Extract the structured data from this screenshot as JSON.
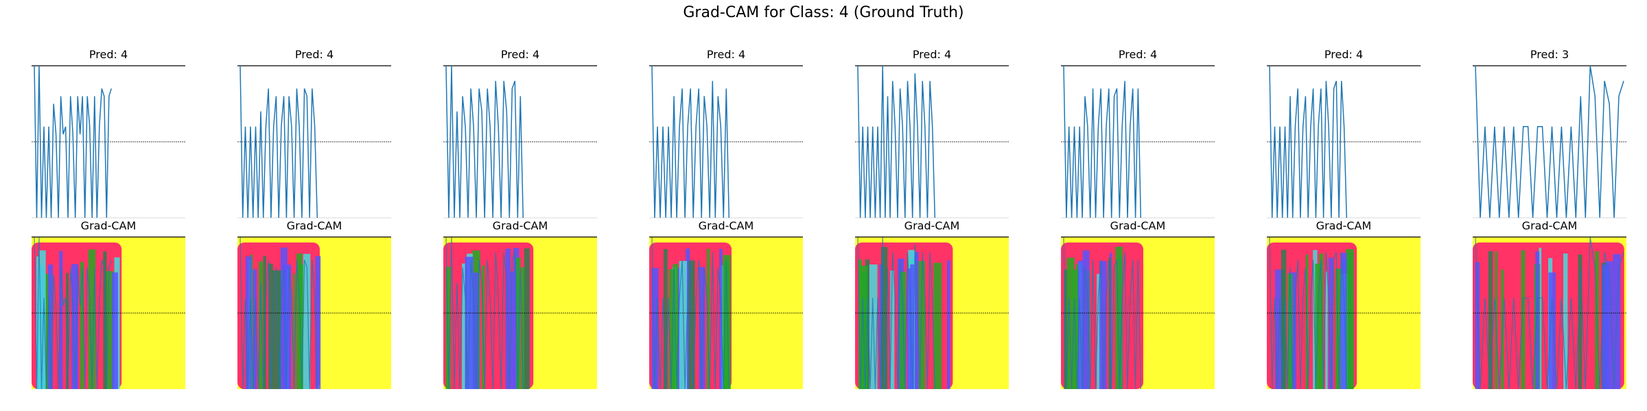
{
  "suptitle": "Grad-CAM for Class: 4 (Ground Truth)",
  "colors": {
    "line": "#1f77b4",
    "cam_yellow": "#ffff33",
    "cam_red": "#ff3366",
    "cam_green": "#22aa22",
    "cam_blue": "#5555ff",
    "cam_cyan": "#44dddd",
    "midline": "#000000"
  },
  "chart_data": [
    {
      "type": "line",
      "panel": "signal",
      "title": "Pred: 4",
      "y": [
        1,
        0,
        1,
        0,
        0.6,
        0,
        0.6,
        0,
        0.75,
        0.55,
        0,
        0.8,
        0.55,
        0.6,
        0,
        0.8,
        0.55,
        0,
        0.8,
        0.55,
        0.8,
        0,
        0.8,
        0.6,
        0,
        0.8,
        0,
        0.6,
        0.85,
        0.8,
        0,
        0.8,
        0.85
      ]
    },
    {
      "type": "heatmap",
      "panel": "cam",
      "title": "Grad-CAM",
      "activation_extent": 0.55
    },
    {
      "type": "line",
      "panel": "signal",
      "title": "Pred: 4",
      "y": [
        1,
        0,
        0.6,
        0,
        0.6,
        0,
        0.6,
        0,
        0.7,
        0,
        0.6,
        0.85,
        0,
        0.6,
        0.8,
        0,
        0.6,
        0.8,
        0,
        0.8,
        0.6,
        0,
        0.85,
        0.6,
        0,
        0.85,
        0.8,
        0,
        0.85,
        0.6,
        0
      ]
    },
    {
      "type": "heatmap",
      "panel": "cam",
      "title": "Grad-CAM",
      "activation_extent": 0.5
    },
    {
      "type": "line",
      "panel": "signal",
      "title": "Pred: 4",
      "y": [
        1,
        0,
        1,
        0,
        0.7,
        0,
        0.8,
        0.6,
        0,
        0.85,
        0.6,
        0,
        0.85,
        0.7,
        0,
        0.85,
        0.6,
        0,
        0.9,
        0.6,
        0,
        0.9,
        0.7,
        0,
        0.85,
        0.9,
        0,
        0.8,
        0
      ]
    },
    {
      "type": "heatmap",
      "panel": "cam",
      "title": "Grad-CAM",
      "activation_extent": 0.55
    },
    {
      "type": "line",
      "panel": "signal",
      "title": "Pred: 4",
      "y": [
        1,
        0,
        0.6,
        0,
        0.6,
        0,
        0.6,
        0,
        0.8,
        0,
        0.6,
        0.85,
        0,
        0.6,
        0.85,
        0,
        0.6,
        0.85,
        0,
        0.8,
        0.6,
        0,
        0.9,
        0,
        0.8,
        0.6,
        0,
        0.85,
        0
      ]
    },
    {
      "type": "heatmap",
      "panel": "cam",
      "title": "Grad-CAM",
      "activation_extent": 0.5
    },
    {
      "type": "line",
      "panel": "signal",
      "title": "Pred: 4",
      "y": [
        1,
        0,
        0.6,
        0,
        0.6,
        0,
        0.6,
        0,
        0.6,
        0,
        1,
        0,
        0.8,
        0,
        0.9,
        0.6,
        0,
        0.85,
        0.6,
        0,
        0.9,
        0.6,
        0,
        0.95,
        0.6,
        0,
        0.9,
        0.6,
        0,
        0.9,
        0.6,
        0
      ]
    },
    {
      "type": "heatmap",
      "panel": "cam",
      "title": "Grad-CAM",
      "activation_extent": 0.6
    },
    {
      "type": "line",
      "panel": "signal",
      "title": "Pred: 4",
      "y": [
        1,
        0,
        0.6,
        0,
        0.6,
        0,
        0.6,
        0,
        0.8,
        0.6,
        0,
        0.85,
        0,
        0.6,
        0.85,
        0,
        0.6,
        0.85,
        0,
        0.8,
        0.85,
        0,
        0.6,
        0.9,
        0,
        0.6,
        0.85,
        0,
        0.85,
        0
      ]
    },
    {
      "type": "heatmap",
      "panel": "cam",
      "title": "Grad-CAM",
      "activation_extent": 0.5
    },
    {
      "type": "line",
      "panel": "signal",
      "title": "Pred: 4",
      "y": [
        1,
        0,
        0.6,
        0,
        0.6,
        0,
        0.6,
        0,
        0.8,
        0,
        0.6,
        0.85,
        0,
        0.6,
        0.8,
        0,
        0.6,
        0.85,
        0,
        0.6,
        0.85,
        0,
        0.9,
        0.6,
        0,
        0.85,
        0.9,
        0,
        0.9,
        0.6,
        0
      ]
    },
    {
      "type": "heatmap",
      "panel": "cam",
      "title": "Grad-CAM",
      "activation_extent": 0.55
    },
    {
      "type": "line",
      "panel": "signal",
      "title": "Pred: 3",
      "y": [
        1,
        0,
        0.6,
        0,
        0.6,
        0,
        0.6,
        0,
        0.6,
        0,
        0.6,
        0.6,
        0,
        0.6,
        0.6,
        0,
        0.6,
        0,
        0.6,
        0,
        0.6,
        0,
        0.8,
        0,
        1,
        0.8,
        0,
        0.9,
        0.75,
        0,
        0.8,
        0.9
      ]
    },
    {
      "type": "heatmap",
      "panel": "cam",
      "title": "Grad-CAM",
      "activation_extent": 0.95
    }
  ]
}
